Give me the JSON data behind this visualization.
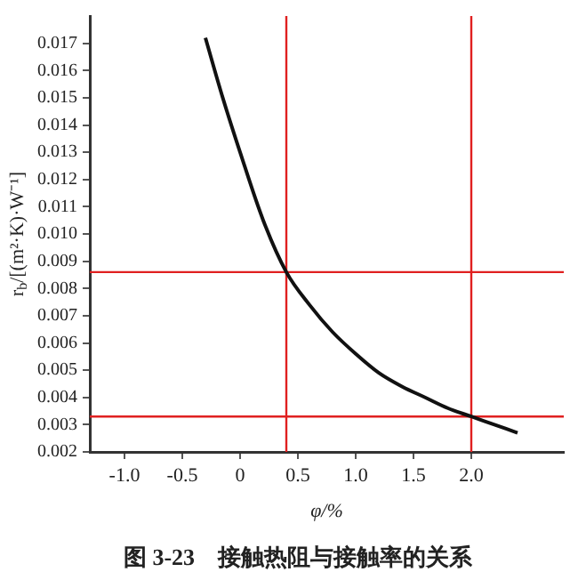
{
  "chart_data": {
    "type": "line",
    "title": "图 3-23　接触热阻与接触率的关系",
    "xlabel": "φ/%",
    "ylabel": "r$_{b}$/[(m²·K)·W⁻¹]",
    "x": [
      -0.3,
      -0.15,
      0,
      0.2,
      0.4,
      0.6,
      0.8,
      1.0,
      1.2,
      1.4,
      1.6,
      1.8,
      2.0,
      2.2,
      2.4
    ],
    "series": [
      {
        "color": "#111111",
        "values": [
          0.0172,
          0.015,
          0.013,
          0.0105,
          0.0086,
          0.0074,
          0.0064,
          0.0056,
          0.0049,
          0.0044,
          0.004,
          0.0036,
          0.0033,
          0.003,
          0.0027
        ]
      }
    ],
    "xlim": [
      -1.3,
      2.8
    ],
    "xticks": [
      {
        "value": -1,
        "label": "-1.0"
      },
      {
        "value": -0.5,
        "label": "-0.5"
      },
      0,
      0.5,
      {
        "value": 1,
        "label": "1.0"
      },
      1.5,
      {
        "value": 2,
        "label": "2.0"
      }
    ],
    "ylim": [
      0.002,
      0.018
    ],
    "yticks": [
      0.002,
      0.003,
      0.004,
      0.005,
      0.006,
      0.007,
      0.008,
      0.009,
      {
        "value": 0.01,
        "label": "0.010"
      },
      0.011,
      0.012,
      0.013,
      0.014,
      0.015,
      0.016,
      0.017
    ],
    "ref_lines": [
      {
        "axis": "x",
        "value": 0.4,
        "color": "#e02020"
      },
      {
        "axis": "y",
        "value": 0.0086,
        "color": "#e02020"
      },
      {
        "axis": "x",
        "value": 2.0,
        "color": "#e02020"
      },
      {
        "axis": "y",
        "value": 0.0033,
        "color": "#e02020"
      }
    ],
    "grid": false,
    "legend": false,
    "marker": "none",
    "line_style": "solid"
  }
}
